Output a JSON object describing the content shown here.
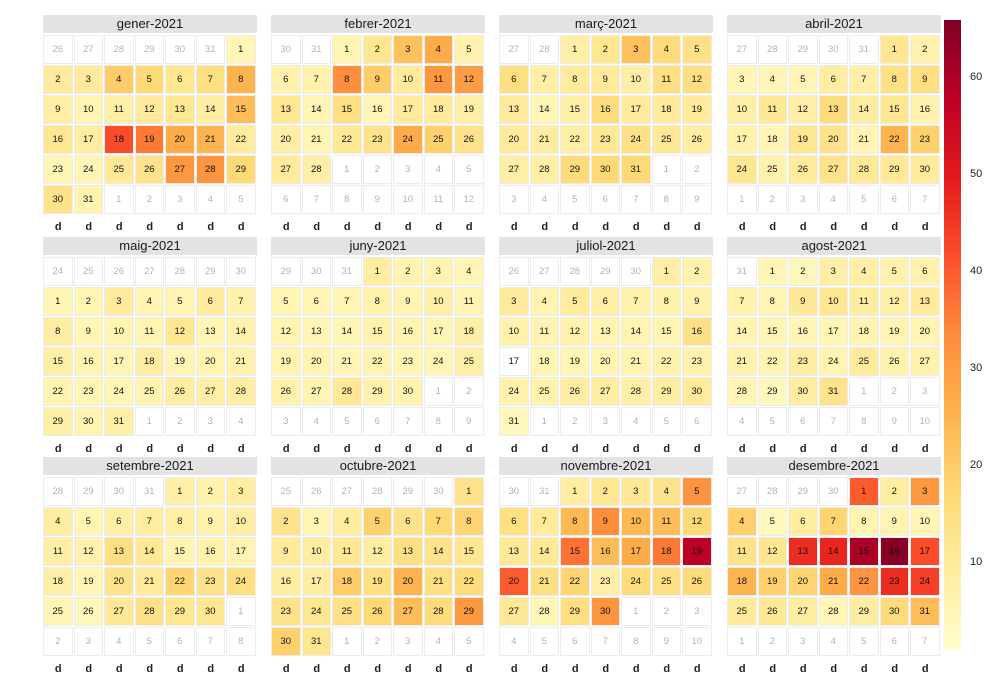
{
  "chart_data": {
    "type": "heatmap",
    "subtype": "calendar",
    "year": 2021,
    "week_start": "saturday",
    "weekday_labels": [
      "d",
      "d",
      "d",
      "d",
      "d",
      "d",
      "d"
    ],
    "color_scale": {
      "palette": [
        "#ffffcc",
        "#ffeda0",
        "#fed976",
        "#feb24c",
        "#fd8d3c",
        "#fc4e2a",
        "#e31a1c",
        "#bd0026",
        "#800026"
      ],
      "range": [
        1,
        66
      ],
      "missing": "#ffffff"
    },
    "legend": {
      "ticks": [
        10,
        20,
        30,
        40,
        50,
        60
      ],
      "placement": "right"
    },
    "months": [
      {
        "title": "gener-2021",
        "values": [
          5,
          10,
          10,
          20,
          17,
          12,
          15,
          25,
          8,
          6,
          8,
          10,
          12,
          9,
          23,
          12,
          9,
          42,
          36,
          27,
          25,
          10,
          5,
          5,
          11,
          13,
          31,
          32,
          17,
          13,
          6
        ]
      },
      {
        "title": "febrer-2021",
        "values": [
          6,
          12,
          22,
          27,
          7,
          7,
          7,
          33,
          20,
          10,
          31,
          30,
          12,
          5,
          15,
          5,
          10,
          10,
          8,
          8,
          6,
          11,
          13,
          27,
          19,
          13,
          10,
          8
        ]
      },
      {
        "title": "març-2021",
        "values": [
          8,
          12,
          22,
          16,
          14,
          15,
          8,
          10,
          10,
          8,
          15,
          15,
          10,
          5,
          8,
          16,
          10,
          10,
          10,
          10,
          9,
          8,
          11,
          14,
          11,
          9,
          8,
          8,
          16,
          17,
          17
        ]
      },
      {
        "title": "abril-2021",
        "values": [
          12,
          7,
          5,
          5,
          5,
          9,
          8,
          14,
          15,
          8,
          11,
          8,
          16,
          9,
          12,
          7,
          7,
          5,
          12,
          13,
          5,
          25,
          19,
          12,
          7,
          10,
          13,
          11,
          11,
          10
        ]
      },
      {
        "title": "maig-2021",
        "values": [
          5,
          5,
          10,
          6,
          6,
          10,
          7,
          9,
          5,
          6,
          6,
          12,
          5,
          7,
          8,
          6,
          5,
          9,
          5,
          6,
          7,
          6,
          5,
          5,
          6,
          9,
          8,
          9,
          8,
          6,
          8
        ]
      },
      {
        "title": "juny-2021",
        "values": [
          9,
          6,
          6,
          5,
          5,
          5,
          5,
          7,
          6,
          8,
          6,
          6,
          5,
          5,
          7,
          6,
          5,
          8,
          6,
          6,
          5,
          6,
          5,
          5,
          8,
          7,
          6,
          11,
          7,
          6
        ]
      },
      {
        "title": "juliol-2021",
        "values": [
          8,
          7,
          10,
          6,
          10,
          8,
          7,
          7,
          7,
          7,
          6,
          7,
          6,
          6,
          6,
          14,
          null,
          5,
          5,
          6,
          6,
          7,
          7,
          7,
          7,
          9,
          9,
          8,
          9,
          10,
          4
        ]
      },
      {
        "title": "agost-2021",
        "values": [
          5,
          4,
          8,
          8,
          7,
          7,
          7,
          6,
          11,
          12,
          9,
          8,
          10,
          6,
          5,
          5,
          5,
          6,
          6,
          6,
          7,
          6,
          9,
          6,
          10,
          7,
          7,
          5,
          4,
          9,
          13
        ]
      },
      {
        "title": "setembre-2021",
        "values": [
          8,
          7,
          9,
          9,
          5,
          8,
          9,
          8,
          7,
          9,
          8,
          7,
          15,
          11,
          6,
          7,
          6,
          8,
          5,
          13,
          10,
          18,
          13,
          15,
          5,
          4,
          11,
          14,
          12,
          12
        ]
      },
      {
        "title": "octubre-2021",
        "values": [
          13,
          13,
          5,
          9,
          19,
          13,
          17,
          18,
          10,
          9,
          11,
          9,
          15,
          13,
          12,
          9,
          9,
          20,
          15,
          25,
          15,
          16,
          13,
          12,
          14,
          17,
          23,
          16,
          31,
          19,
          12
        ]
      },
      {
        "title": "novembre-2021",
        "values": [
          9,
          12,
          11,
          13,
          32,
          15,
          10,
          24,
          33,
          24,
          23,
          17,
          11,
          11,
          37,
          23,
          27,
          36,
          58,
          40,
          15,
          18,
          8,
          16,
          15,
          16,
          11,
          5,
          15,
          32
        ]
      },
      {
        "title": "desembre-2021",
        "values": [
          40,
          9,
          31,
          19,
          4,
          9,
          18,
          6,
          6,
          5,
          13,
          12,
          47,
          48,
          60,
          65,
          42,
          25,
          19,
          18,
          27,
          32,
          47,
          44,
          10,
          11,
          9,
          5,
          9,
          16,
          23
        ]
      }
    ]
  }
}
